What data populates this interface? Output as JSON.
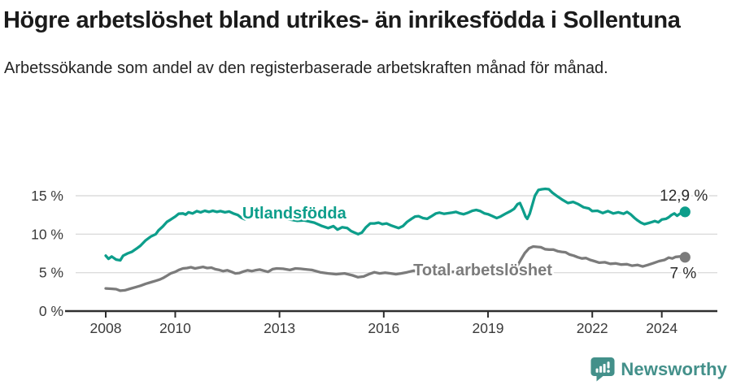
{
  "header": {
    "title": "Högre arbetslöshet bland utrikes- än inrikesfödda i Sollentuna",
    "subtitle": "Arbetssökande som andel av den registerbaserade arbetskraften månad för månad."
  },
  "footer": {
    "brand_name": "Newsworthy",
    "brand_color": "#43908a",
    "logo_icon": "speech-bubble-bar-chart-icon"
  },
  "colors": {
    "grid": "#dcdcdc",
    "axis": "#2e2e2e",
    "axis_text": "#3a3a3a",
    "end_label_text": "#2a2a2a",
    "background": "#ffffff"
  },
  "chart_data": {
    "type": "line",
    "title": "Högre arbetslöshet bland utrikes- än inrikesfödda i Sollentuna",
    "subtitle": "Arbetssökande som andel av den registerbaserade arbetskraften månad för månad.",
    "x_unit": "year",
    "y_unit": "%",
    "x_ticks": [
      2008,
      2010,
      2013,
      2016,
      2019,
      2022,
      2024
    ],
    "y_ticks": [
      0,
      5,
      10,
      15
    ],
    "y_tick_suffix": " %",
    "x_range": [
      2008.0,
      2024.67
    ],
    "y_range": [
      0,
      16.9
    ],
    "grid": true,
    "legend_position": "inline-labels",
    "series": [
      {
        "name": "Utlandsfödda",
        "color": "#0d9e8b",
        "end_value": 12.9,
        "end_label": "12,9 %",
        "end_label_offset": [
          28,
          -14
        ],
        "label_pos": {
          "year": 2011.93,
          "value": 12.04
        },
        "points": [
          [
            2008.0,
            7.2
          ],
          [
            2008.08,
            6.8
          ],
          [
            2008.17,
            7.1
          ],
          [
            2008.3,
            6.7
          ],
          [
            2008.42,
            6.6
          ],
          [
            2008.5,
            7.2
          ],
          [
            2008.63,
            7.5
          ],
          [
            2008.75,
            7.7
          ],
          [
            2008.88,
            8.1
          ],
          [
            2009.0,
            8.5
          ],
          [
            2009.15,
            9.2
          ],
          [
            2009.3,
            9.7
          ],
          [
            2009.44,
            10.0
          ],
          [
            2009.52,
            10.5
          ],
          [
            2009.64,
            11.0
          ],
          [
            2009.76,
            11.6
          ],
          [
            2009.87,
            11.9
          ],
          [
            2010.0,
            12.3
          ],
          [
            2010.1,
            12.65
          ],
          [
            2010.22,
            12.7
          ],
          [
            2010.3,
            12.55
          ],
          [
            2010.38,
            12.85
          ],
          [
            2010.5,
            12.7
          ],
          [
            2010.62,
            13.0
          ],
          [
            2010.73,
            12.85
          ],
          [
            2010.85,
            13.05
          ],
          [
            2010.97,
            12.9
          ],
          [
            2011.08,
            13.05
          ],
          [
            2011.2,
            12.9
          ],
          [
            2011.3,
            13.0
          ],
          [
            2011.43,
            12.85
          ],
          [
            2011.55,
            12.95
          ],
          [
            2011.67,
            12.7
          ],
          [
            2011.8,
            12.5
          ],
          [
            2011.9,
            12.15
          ],
          [
            2012.0,
            11.95
          ],
          [
            2012.1,
            12.1
          ],
          [
            2012.22,
            12.3
          ],
          [
            2012.35,
            12.45
          ],
          [
            2012.5,
            12.5
          ],
          [
            2012.62,
            12.4
          ],
          [
            2012.75,
            12.3
          ],
          [
            2012.9,
            12.45
          ],
          [
            2013.0,
            12.25
          ],
          [
            2013.15,
            12.1
          ],
          [
            2013.3,
            11.9
          ],
          [
            2013.5,
            11.75
          ],
          [
            2013.7,
            11.8
          ],
          [
            2013.85,
            11.65
          ],
          [
            2014.0,
            11.5
          ],
          [
            2014.2,
            11.1
          ],
          [
            2014.4,
            10.8
          ],
          [
            2014.55,
            11.05
          ],
          [
            2014.67,
            10.6
          ],
          [
            2014.8,
            10.9
          ],
          [
            2014.95,
            10.8
          ],
          [
            2015.06,
            10.4
          ],
          [
            2015.26,
            10.0
          ],
          [
            2015.37,
            10.2
          ],
          [
            2015.49,
            10.9
          ],
          [
            2015.61,
            11.4
          ],
          [
            2015.73,
            11.4
          ],
          [
            2015.85,
            11.5
          ],
          [
            2015.96,
            11.3
          ],
          [
            2016.08,
            11.4
          ],
          [
            2016.2,
            11.15
          ],
          [
            2016.43,
            10.8
          ],
          [
            2016.55,
            11.05
          ],
          [
            2016.67,
            11.6
          ],
          [
            2016.8,
            12.0
          ],
          [
            2016.9,
            12.3
          ],
          [
            2017.0,
            12.35
          ],
          [
            2017.13,
            12.1
          ],
          [
            2017.25,
            12.0
          ],
          [
            2017.36,
            12.3
          ],
          [
            2017.5,
            12.7
          ],
          [
            2017.6,
            12.8
          ],
          [
            2017.73,
            12.65
          ],
          [
            2017.97,
            12.8
          ],
          [
            2018.08,
            12.9
          ],
          [
            2018.2,
            12.7
          ],
          [
            2018.3,
            12.6
          ],
          [
            2018.43,
            12.8
          ],
          [
            2018.55,
            13.05
          ],
          [
            2018.66,
            13.15
          ],
          [
            2018.78,
            13.0
          ],
          [
            2018.9,
            12.7
          ],
          [
            2019.0,
            12.6
          ],
          [
            2019.13,
            12.35
          ],
          [
            2019.25,
            12.1
          ],
          [
            2019.36,
            12.3
          ],
          [
            2019.5,
            12.65
          ],
          [
            2019.65,
            13.0
          ],
          [
            2019.75,
            13.3
          ],
          [
            2019.85,
            13.9
          ],
          [
            2019.92,
            14.05
          ],
          [
            2020.0,
            13.2
          ],
          [
            2020.08,
            12.3
          ],
          [
            2020.13,
            12.0
          ],
          [
            2020.2,
            12.65
          ],
          [
            2020.28,
            13.9
          ],
          [
            2020.35,
            15.0
          ],
          [
            2020.45,
            15.75
          ],
          [
            2020.55,
            15.85
          ],
          [
            2020.65,
            15.9
          ],
          [
            2020.75,
            15.85
          ],
          [
            2020.85,
            15.4
          ],
          [
            2021.0,
            14.9
          ],
          [
            2021.15,
            14.45
          ],
          [
            2021.3,
            14.05
          ],
          [
            2021.45,
            14.2
          ],
          [
            2021.6,
            13.9
          ],
          [
            2021.75,
            13.5
          ],
          [
            2021.9,
            13.35
          ],
          [
            2022.0,
            13.0
          ],
          [
            2022.15,
            13.05
          ],
          [
            2022.3,
            12.75
          ],
          [
            2022.45,
            13.0
          ],
          [
            2022.6,
            12.7
          ],
          [
            2022.75,
            12.85
          ],
          [
            2022.9,
            12.65
          ],
          [
            2023.0,
            12.9
          ],
          [
            2023.1,
            12.6
          ],
          [
            2023.22,
            12.1
          ],
          [
            2023.3,
            11.8
          ],
          [
            2023.4,
            11.5
          ],
          [
            2023.5,
            11.3
          ],
          [
            2023.62,
            11.45
          ],
          [
            2023.73,
            11.6
          ],
          [
            2023.8,
            11.7
          ],
          [
            2023.9,
            11.55
          ],
          [
            2024.0,
            11.9
          ],
          [
            2024.12,
            12.0
          ],
          [
            2024.2,
            12.2
          ],
          [
            2024.28,
            12.5
          ],
          [
            2024.36,
            12.7
          ],
          [
            2024.44,
            12.4
          ],
          [
            2024.52,
            12.65
          ],
          [
            2024.6,
            12.85
          ],
          [
            2024.67,
            12.9
          ]
        ]
      },
      {
        "name": "Total arbetslöshet",
        "color": "#7b7b7b",
        "end_value": 7.0,
        "end_label": "7 %",
        "end_label_offset": [
          14,
          26
        ],
        "label_pos": {
          "year": 2016.85,
          "value": 4.65
        },
        "points": [
          [
            2008.0,
            2.95
          ],
          [
            2008.15,
            2.9
          ],
          [
            2008.3,
            2.85
          ],
          [
            2008.42,
            2.65
          ],
          [
            2008.55,
            2.7
          ],
          [
            2008.7,
            2.9
          ],
          [
            2008.85,
            3.1
          ],
          [
            2009.0,
            3.3
          ],
          [
            2009.15,
            3.55
          ],
          [
            2009.3,
            3.75
          ],
          [
            2009.45,
            3.95
          ],
          [
            2009.55,
            4.1
          ],
          [
            2009.65,
            4.3
          ],
          [
            2009.76,
            4.6
          ],
          [
            2009.87,
            4.9
          ],
          [
            2010.0,
            5.1
          ],
          [
            2010.1,
            5.35
          ],
          [
            2010.22,
            5.55
          ],
          [
            2010.34,
            5.6
          ],
          [
            2010.45,
            5.7
          ],
          [
            2010.57,
            5.55
          ],
          [
            2010.69,
            5.65
          ],
          [
            2010.8,
            5.75
          ],
          [
            2010.92,
            5.6
          ],
          [
            2011.04,
            5.65
          ],
          [
            2011.15,
            5.45
          ],
          [
            2011.27,
            5.35
          ],
          [
            2011.38,
            5.2
          ],
          [
            2011.5,
            5.3
          ],
          [
            2011.62,
            5.1
          ],
          [
            2011.73,
            4.9
          ],
          [
            2011.85,
            4.95
          ],
          [
            2011.97,
            5.15
          ],
          [
            2012.08,
            5.3
          ],
          [
            2012.2,
            5.2
          ],
          [
            2012.3,
            5.3
          ],
          [
            2012.43,
            5.4
          ],
          [
            2012.55,
            5.25
          ],
          [
            2012.67,
            5.1
          ],
          [
            2012.8,
            5.45
          ],
          [
            2012.92,
            5.55
          ],
          [
            2013.1,
            5.5
          ],
          [
            2013.3,
            5.35
          ],
          [
            2013.46,
            5.55
          ],
          [
            2013.6,
            5.5
          ],
          [
            2013.7,
            5.45
          ],
          [
            2013.93,
            5.35
          ],
          [
            2014.17,
            5.05
          ],
          [
            2014.4,
            4.9
          ],
          [
            2014.63,
            4.8
          ],
          [
            2014.87,
            4.9
          ],
          [
            2015.1,
            4.65
          ],
          [
            2015.26,
            4.4
          ],
          [
            2015.42,
            4.5
          ],
          [
            2015.57,
            4.8
          ],
          [
            2015.73,
            5.05
          ],
          [
            2015.88,
            4.9
          ],
          [
            2016.04,
            5.0
          ],
          [
            2016.2,
            4.9
          ],
          [
            2016.35,
            4.8
          ],
          [
            2016.5,
            4.9
          ],
          [
            2016.67,
            5.05
          ],
          [
            2016.85,
            5.25
          ],
          [
            2017.0,
            5.2
          ],
          [
            2017.25,
            5.1
          ],
          [
            2017.5,
            5.15
          ],
          [
            2017.75,
            5.05
          ],
          [
            2018.0,
            5.1
          ],
          [
            2018.25,
            5.0
          ],
          [
            2018.5,
            5.05
          ],
          [
            2018.75,
            5.1
          ],
          [
            2019.0,
            5.15
          ],
          [
            2019.25,
            5.25
          ],
          [
            2019.5,
            5.3
          ],
          [
            2019.7,
            5.5
          ],
          [
            2019.85,
            5.9
          ],
          [
            2019.94,
            6.65
          ],
          [
            2020.06,
            7.55
          ],
          [
            2020.18,
            8.15
          ],
          [
            2020.3,
            8.4
          ],
          [
            2020.42,
            8.35
          ],
          [
            2020.52,
            8.3
          ],
          [
            2020.64,
            8.05
          ],
          [
            2020.76,
            8.0
          ],
          [
            2020.88,
            8.0
          ],
          [
            2021.0,
            7.8
          ],
          [
            2021.12,
            7.7
          ],
          [
            2021.23,
            7.65
          ],
          [
            2021.35,
            7.35
          ],
          [
            2021.47,
            7.2
          ],
          [
            2021.58,
            7.0
          ],
          [
            2021.7,
            6.85
          ],
          [
            2021.82,
            6.9
          ],
          [
            2021.94,
            6.65
          ],
          [
            2022.06,
            6.5
          ],
          [
            2022.2,
            6.3
          ],
          [
            2022.36,
            6.35
          ],
          [
            2022.52,
            6.15
          ],
          [
            2022.67,
            6.2
          ],
          [
            2022.83,
            6.05
          ],
          [
            2023.0,
            6.1
          ],
          [
            2023.14,
            5.9
          ],
          [
            2023.3,
            6.0
          ],
          [
            2023.45,
            5.8
          ],
          [
            2023.6,
            6.0
          ],
          [
            2023.77,
            6.25
          ],
          [
            2023.92,
            6.5
          ],
          [
            2024.08,
            6.65
          ],
          [
            2024.2,
            6.95
          ],
          [
            2024.3,
            6.85
          ],
          [
            2024.4,
            7.05
          ],
          [
            2024.52,
            7.1
          ],
          [
            2024.67,
            7.0
          ]
        ]
      }
    ]
  }
}
